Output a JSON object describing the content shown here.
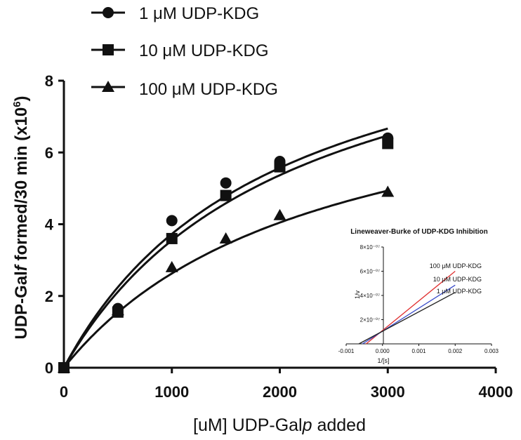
{
  "chart_data": [
    {
      "type": "scatter",
      "title": "",
      "xlabel": "[uM] UDP-Gal",
      "xlabel_italic": "p",
      "xlabel_suffix": " added",
      "ylabel_prefix": "UDP-Gal",
      "ylabel_italic": "f",
      "ylabel_mid": " formed/30 min (x10",
      "ylabel_sup": "6",
      "ylabel_end": ")",
      "xlim": [
        0,
        4000
      ],
      "ylim": [
        0,
        8
      ],
      "xticks": [
        "0",
        "1000",
        "2000",
        "3000",
        "4000"
      ],
      "yticks": [
        "0",
        "2",
        "4",
        "6",
        "8"
      ],
      "legend_position": "top-left",
      "series": [
        {
          "name": "1 μM UDP-KDG",
          "marker": "circle",
          "x": [
            0,
            500,
            1000,
            1500,
            2000,
            3000
          ],
          "y": [
            0,
            1.65,
            4.1,
            5.15,
            5.75,
            6.4
          ],
          "fit": {
            "vmax": 11.0,
            "km": 1950
          }
        },
        {
          "name": "10 μM UDP-KDG",
          "marker": "square",
          "x": [
            0,
            500,
            1000,
            1500,
            2000,
            3000
          ],
          "y": [
            0,
            1.55,
            3.6,
            4.8,
            5.6,
            6.25
          ],
          "fit": {
            "vmax": 11.0,
            "km": 2100
          }
        },
        {
          "name": "100 μM UDP-KDG",
          "marker": "triangle",
          "x": [
            0,
            500,
            1000,
            1500,
            2000,
            3000
          ],
          "y": [
            0,
            1.6,
            2.8,
            3.6,
            4.25,
            4.9
          ],
          "fit": {
            "vmax": 8.8,
            "km": 2350
          }
        }
      ]
    },
    {
      "type": "line",
      "title": "Lineweaver-Burke of UDP-KDG Inhibition",
      "xlabel": "1/[s]",
      "ylabel": "1/v",
      "xlim": [
        -0.001,
        0.003
      ],
      "ylim": [
        0,
        8e-07
      ],
      "xticks": [
        "-0.001",
        "0.000",
        "0.001",
        "0.002",
        "0.003"
      ],
      "yticks": [
        "2×10⁻⁰⁷",
        "4×10⁻⁰⁷",
        "6×10⁻⁰⁷",
        "8×10⁻⁰⁷"
      ],
      "series": [
        {
          "name": "100 μM UDP-KDG",
          "color": "#e03030",
          "x": [
            -0.00045,
            0.002
          ],
          "y": [
            0,
            6e-07
          ]
        },
        {
          "name": "10 μM UDP-KDG",
          "color": "#3548c8",
          "x": [
            -0.00055,
            0.002
          ],
          "y": [
            0,
            4.85e-07
          ]
        },
        {
          "name": "1 μM UDP-KDG",
          "color": "#222222",
          "x": [
            -0.00065,
            0.002
          ],
          "y": [
            0,
            4.25e-07
          ]
        }
      ]
    }
  ]
}
